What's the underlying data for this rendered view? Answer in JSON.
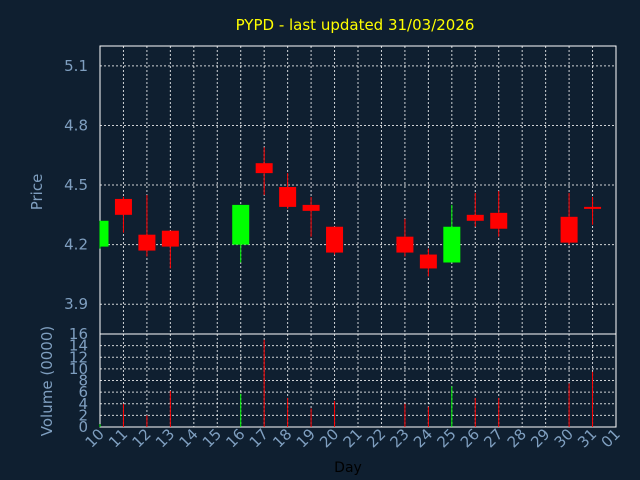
{
  "chart_data": [
    {
      "type": "candlestick",
      "title": "PYPD - last updated 31/03/2026",
      "ylabel": "Price",
      "ylim": [
        3.75,
        5.2
      ],
      "yticks": [
        "3.9",
        "4.2",
        "4.5",
        "4.8",
        "5.1"
      ],
      "grid": true,
      "colors": {
        "up": "#00ff00",
        "down": "#ff0000",
        "title": "#ffff00",
        "axis_text": "#7f9fc0",
        "grid": "#ffffff",
        "background": "#0f1f30"
      },
      "candles": [
        {
          "day": "10",
          "open": 4.19,
          "high": 4.32,
          "low": 4.18,
          "close": 4.32
        },
        {
          "day": "11",
          "open": 4.43,
          "high": 4.44,
          "low": 4.26,
          "close": 4.35
        },
        {
          "day": "12",
          "open": 4.25,
          "high": 4.45,
          "low": 4.14,
          "close": 4.17
        },
        {
          "day": "13",
          "open": 4.27,
          "high": 4.27,
          "low": 4.08,
          "close": 4.19
        },
        {
          "day": "16",
          "open": 4.2,
          "high": 4.4,
          "low": 4.11,
          "close": 4.4
        },
        {
          "day": "17",
          "open": 4.61,
          "high": 4.69,
          "low": 4.45,
          "close": 4.56
        },
        {
          "day": "18",
          "open": 4.49,
          "high": 4.56,
          "low": 4.38,
          "close": 4.39
        },
        {
          "day": "19",
          "open": 4.4,
          "high": 4.44,
          "low": 4.24,
          "close": 4.37
        },
        {
          "day": "20",
          "open": 4.29,
          "high": 4.29,
          "low": 4.15,
          "close": 4.16
        },
        {
          "day": "23",
          "open": 4.24,
          "high": 4.33,
          "low": 4.14,
          "close": 4.16
        },
        {
          "day": "24",
          "open": 4.15,
          "high": 4.18,
          "low": 4.04,
          "close": 4.08
        },
        {
          "day": "25",
          "open": 4.11,
          "high": 4.4,
          "low": 4.11,
          "close": 4.29
        },
        {
          "day": "26",
          "open": 4.35,
          "high": 4.46,
          "low": 4.29,
          "close": 4.32
        },
        {
          "day": "27",
          "open": 4.36,
          "high": 4.47,
          "low": 4.24,
          "close": 4.28
        },
        {
          "day": "30",
          "open": 4.34,
          "high": 4.46,
          "low": 4.2,
          "close": 4.21
        },
        {
          "day": "31",
          "open": 4.39,
          "high": 4.44,
          "low": 4.3,
          "close": 4.38
        }
      ]
    },
    {
      "type": "bar",
      "ylabel": "Volume (0000)",
      "xlabel": "Day",
      "ylim": [
        0,
        16
      ],
      "yticks": [
        "0",
        "2",
        "4",
        "6",
        "8",
        "10",
        "12",
        "14",
        "16"
      ],
      "categories": [
        "10",
        "11",
        "12",
        "13",
        "14",
        "15",
        "16",
        "17",
        "18",
        "19",
        "20",
        "21",
        "22",
        "23",
        "24",
        "25",
        "26",
        "27",
        "28",
        "29",
        "30",
        "31",
        "01"
      ],
      "volumes": [
        {
          "day": "10",
          "value": 0.5,
          "color": "green"
        },
        {
          "day": "11",
          "value": 4.0,
          "color": "red"
        },
        {
          "day": "12",
          "value": 2.0,
          "color": "red"
        },
        {
          "day": "13",
          "value": 6.2,
          "color": "red"
        },
        {
          "day": "16",
          "value": 5.7,
          "color": "green"
        },
        {
          "day": "17",
          "value": 15.0,
          "color": "red"
        },
        {
          "day": "18",
          "value": 5.0,
          "color": "red"
        },
        {
          "day": "19",
          "value": 3.2,
          "color": "red"
        },
        {
          "day": "20",
          "value": 4.5,
          "color": "red"
        },
        {
          "day": "23",
          "value": 4.0,
          "color": "red"
        },
        {
          "day": "24",
          "value": 3.5,
          "color": "red"
        },
        {
          "day": "25",
          "value": 7.0,
          "color": "green"
        },
        {
          "day": "26",
          "value": 5.0,
          "color": "red"
        },
        {
          "day": "27",
          "value": 5.0,
          "color": "red"
        },
        {
          "day": "30",
          "value": 7.5,
          "color": "red"
        },
        {
          "day": "31",
          "value": 9.5,
          "color": "red"
        }
      ]
    }
  ]
}
